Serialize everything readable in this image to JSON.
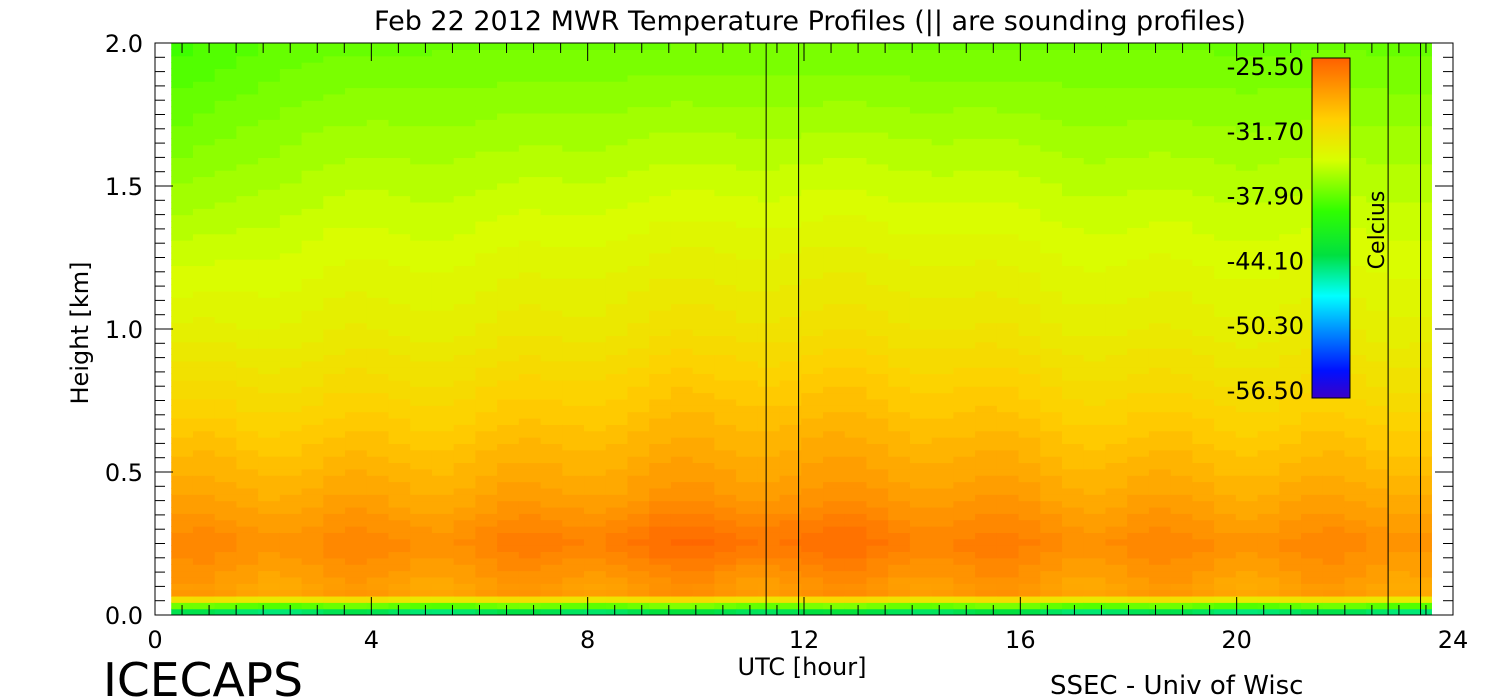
{
  "chart_data": {
    "type": "heatmap",
    "title": "Feb 22 2012 MWR Temperature Profiles (|| are sounding profiles)",
    "xlabel": "UTC [hour]",
    "ylabel": "Height [km]",
    "xlim": [
      0,
      24
    ],
    "ylim": [
      0,
      2
    ],
    "x_ticks": [
      "0",
      "4",
      "8",
      "12",
      "16",
      "20",
      "24"
    ],
    "y_ticks": [
      "0.0",
      "0.5",
      "1.0",
      "1.5",
      "2.0"
    ],
    "colorbar": {
      "label": "Celcius",
      "ticks": [
        "-25.50",
        "-31.70",
        "-37.90",
        "-44.10",
        "-50.30",
        "-56.50"
      ],
      "range": [
        -56.5,
        -25.5
      ]
    },
    "sounding_times_hour": [
      11.3,
      11.9,
      22.8,
      23.4
    ],
    "data_x_range_hour": [
      0.3,
      23.6
    ]
  },
  "footer": {
    "left": "ICECAPS",
    "right": "SSEC - Univ of Wisc"
  }
}
